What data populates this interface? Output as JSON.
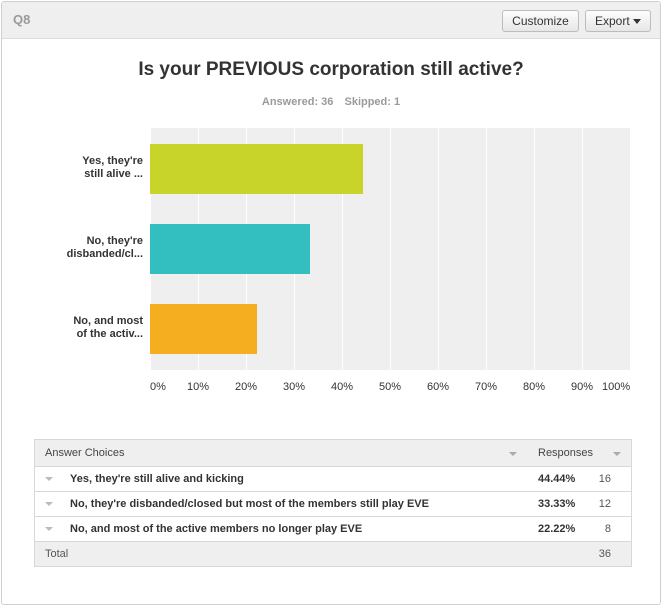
{
  "header": {
    "question_number": "Q8",
    "customize_label": "Customize",
    "export_label": "Export"
  },
  "summary": {
    "answered": "Answered: 36",
    "skipped": "Skipped: 1"
  },
  "colors": {
    "bar1": "#c9d42a",
    "bar2": "#33bfc0",
    "bar3": "#f6ae21"
  },
  "chart_data": {
    "type": "bar",
    "orientation": "horizontal",
    "title": "Is your PREVIOUS corporation still active?",
    "categories": [
      "Yes, they're still alive ...",
      "No, they're disbanded/cl...",
      "No, and most of the activ..."
    ],
    "category_lines": [
      [
        "Yes, they're",
        "still alive ..."
      ],
      [
        "No, they're",
        "disbanded/cl..."
      ],
      [
        "No, and most",
        "of the activ..."
      ]
    ],
    "values": [
      44.44,
      33.33,
      22.22
    ],
    "xlim": [
      0,
      100
    ],
    "ticks": [
      "0%",
      "10%",
      "20%",
      "30%",
      "40%",
      "50%",
      "60%",
      "70%",
      "80%",
      "90%",
      "100%"
    ],
    "xlabel": "",
    "ylabel": ""
  },
  "table": {
    "col_answer": "Answer Choices",
    "col_responses": "Responses",
    "rows": [
      {
        "label": "Yes, they're still alive and kicking",
        "percent": "44.44%",
        "count": "16"
      },
      {
        "label": "No, they're disbanded/closed but most of the members still play EVE",
        "percent": "33.33%",
        "count": "12"
      },
      {
        "label": "No, and most of the active members no longer play EVE",
        "percent": "22.22%",
        "count": "8"
      }
    ],
    "total_label": "Total",
    "total_count": "36"
  }
}
